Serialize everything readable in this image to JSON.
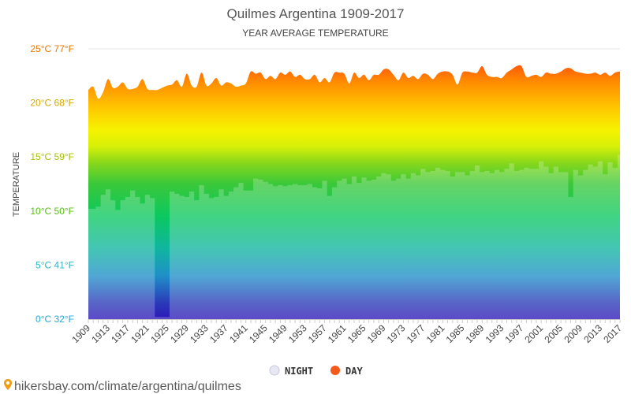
{
  "page": {
    "credit_text": "hikersbay.com/climate/argentina/quilmes",
    "credit_icon": "map-pin-icon"
  },
  "chart_data": {
    "type": "area",
    "title": "Quilmes Argentina 1909-2017",
    "subtitle": "YEAR AVERAGE TEMPERATURE",
    "ylabel": "TEMPERATURE",
    "xlabel": "",
    "ylim": [
      0,
      25
    ],
    "grid": true,
    "legend_position": "bottom-center",
    "y_ticks": [
      {
        "value": 0,
        "label": "0°C 32°F",
        "color": "#2aa8d8"
      },
      {
        "value": 5,
        "label": "5°C 41°F",
        "color": "#2ab8c8"
      },
      {
        "value": 10,
        "label": "10°C 50°F",
        "color": "#55c010"
      },
      {
        "value": 15,
        "label": "15°C 59°F",
        "color": "#a8c000"
      },
      {
        "value": 20,
        "label": "20°C 68°F",
        "color": "#d8a800"
      },
      {
        "value": 25,
        "label": "25°C 77°F",
        "color": "#e87800"
      }
    ],
    "x_tick_labels": [
      "1909",
      "1913",
      "1917",
      "1921",
      "1925",
      "1929",
      "1933",
      "1937",
      "1941",
      "1945",
      "1949",
      "1953",
      "1957",
      "1961",
      "1965",
      "1969",
      "1973",
      "1977",
      "1981",
      "1985",
      "1989",
      "1993",
      "1997",
      "2001",
      "2005",
      "2009",
      "2013",
      "2017"
    ],
    "x": [
      1909,
      1910,
      1911,
      1912,
      1913,
      1914,
      1915,
      1916,
      1917,
      1918,
      1919,
      1920,
      1921,
      1922,
      1923,
      1924,
      1925,
      1926,
      1927,
      1928,
      1929,
      1930,
      1931,
      1932,
      1933,
      1934,
      1935,
      1936,
      1937,
      1938,
      1939,
      1940,
      1941,
      1942,
      1943,
      1944,
      1945,
      1946,
      1947,
      1948,
      1949,
      1950,
      1951,
      1952,
      1953,
      1954,
      1955,
      1956,
      1957,
      1958,
      1959,
      1960,
      1961,
      1962,
      1963,
      1964,
      1965,
      1966,
      1967,
      1968,
      1969,
      1970,
      1971,
      1972,
      1973,
      1974,
      1975,
      1976,
      1977,
      1978,
      1979,
      1980,
      1981,
      1982,
      1983,
      1984,
      1985,
      1986,
      1987,
      1988,
      1989,
      1990,
      1991,
      1992,
      1993,
      1994,
      1995,
      1996,
      1997,
      1998,
      1999,
      2000,
      2001,
      2002,
      2003,
      2004,
      2005,
      2006,
      2007,
      2008,
      2009,
      2010,
      2011,
      2012,
      2013,
      2014,
      2015,
      2016,
      2017
    ],
    "series": [
      {
        "name": "NIGHT",
        "legend_color": "#e8e8f4",
        "values": [
          10.2,
          10.2,
          10.4,
          11.5,
          12.0,
          11.0,
          10.1,
          11.0,
          11.3,
          11.9,
          11.3,
          10.7,
          11.5,
          11.2,
          0.2,
          0.2,
          0.2,
          11.8,
          11.6,
          11.4,
          11.3,
          11.8,
          11.0,
          12.4,
          11.6,
          11.2,
          11.3,
          12.0,
          11.4,
          11.8,
          12.2,
          12.6,
          11.9,
          11.9,
          13.0,
          12.9,
          12.7,
          12.5,
          12.3,
          12.4,
          12.3,
          12.4,
          12.5,
          12.4,
          12.4,
          12.5,
          12.2,
          12.1,
          12.8,
          11.4,
          12.2,
          12.8,
          13.0,
          12.5,
          13.2,
          12.6,
          13.1,
          12.8,
          12.9,
          13.2,
          13.5,
          13.4,
          12.8,
          13.0,
          13.4,
          13.0,
          13.5,
          13.3,
          13.9,
          13.6,
          13.7,
          14.0,
          13.8,
          13.7,
          13.2,
          13.6,
          13.6,
          13.3,
          13.7,
          14.2,
          13.6,
          13.7,
          13.5,
          13.8,
          13.6,
          13.9,
          14.4,
          13.7,
          13.8,
          14.0,
          13.9,
          13.9,
          14.6,
          14.1,
          13.5,
          14.1,
          13.6,
          13.6,
          11.3,
          13.8,
          13.3,
          13.8,
          14.3,
          14.1,
          14.6,
          13.4,
          14.5,
          14.0,
          15.2
        ]
      },
      {
        "name": "DAY",
        "legend_color": "#f45a1c",
        "values": [
          21.2,
          21.5,
          20.4,
          21.0,
          22.2,
          21.4,
          21.5,
          21.9,
          21.3,
          21.3,
          21.5,
          22.2,
          21.3,
          21.2,
          21.2,
          21.4,
          21.6,
          21.7,
          22.1,
          21.5,
          22.7,
          21.6,
          21.5,
          22.8,
          21.6,
          21.8,
          22.3,
          21.6,
          21.9,
          21.8,
          21.5,
          21.6,
          21.8,
          22.9,
          22.7,
          22.8,
          22.2,
          22.5,
          22.2,
          22.8,
          22.6,
          22.9,
          22.4,
          22.6,
          22.2,
          22.2,
          22.6,
          21.9,
          22.3,
          21.9,
          22.8,
          22.8,
          22.7,
          21.8,
          22.8,
          22.3,
          22.6,
          22.1,
          22.6,
          22.6,
          23.1,
          23.1,
          22.6,
          22.1,
          22.8,
          22.3,
          22.5,
          22.2,
          22.7,
          22.6,
          22.2,
          22.7,
          22.9,
          22.9,
          22.6,
          21.7,
          22.8,
          22.9,
          22.8,
          22.8,
          23.4,
          22.6,
          22.4,
          22.4,
          22.3,
          22.8,
          23.1,
          23.4,
          23.4,
          22.4,
          22.5,
          22.6,
          22.4,
          22.8,
          22.7,
          22.7,
          22.9,
          23.2,
          23.2,
          22.9,
          22.8,
          22.7,
          22.7,
          22.8,
          22.6,
          22.8,
          22.5,
          22.8,
          22.9
        ]
      }
    ]
  }
}
